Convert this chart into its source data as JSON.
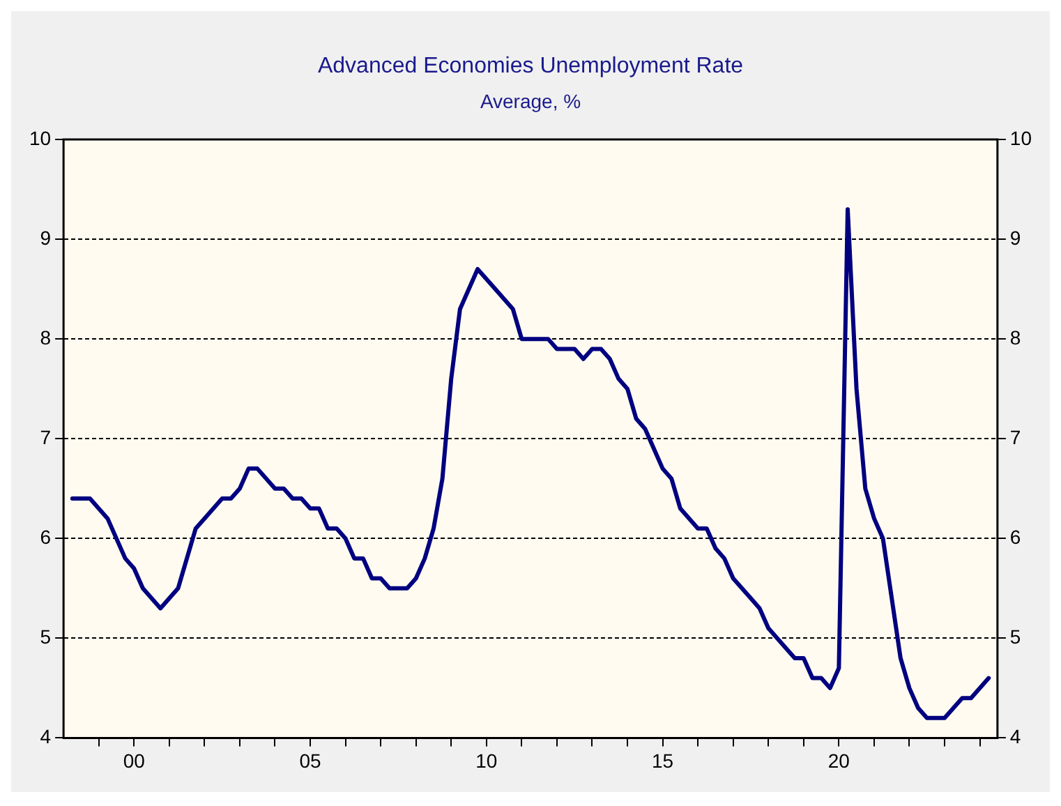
{
  "chart_data": {
    "type": "line",
    "title": "Advanced Economies Unemployment Rate",
    "subtitle": "Average, %",
    "x": [
      1998.25,
      1998.75,
      1999.25,
      1999.75,
      2000.0,
      2000.25,
      2000.75,
      2001.25,
      2001.75,
      2002.0,
      2002.5,
      2002.75,
      2003.0,
      2003.25,
      2003.5,
      2004.0,
      2004.25,
      2004.5,
      2004.75,
      2005.0,
      2005.25,
      2005.5,
      2005.75,
      2006.0,
      2006.25,
      2006.5,
      2006.75,
      2007.0,
      2007.25,
      2007.75,
      2008.0,
      2008.25,
      2008.5,
      2008.75,
      2009.0,
      2009.25,
      2009.75,
      2010.25,
      2010.75,
      2011.0,
      2011.75,
      2012.0,
      2012.5,
      2012.75,
      2013.0,
      2013.25,
      2013.5,
      2013.75,
      2014.0,
      2014.25,
      2014.5,
      2014.75,
      2015.0,
      2015.25,
      2015.5,
      2016.0,
      2016.25,
      2016.5,
      2016.75,
      2017.0,
      2017.5,
      2017.75,
      2018.0,
      2018.5,
      2018.75,
      2019.0,
      2019.25,
      2019.5,
      2019.75,
      2020.0,
      2020.25,
      2020.5,
      2020.75,
      2021.0,
      2021.25,
      2021.75,
      2022.0,
      2022.25,
      2022.5,
      2023.0,
      2023.5,
      2023.75,
      2024.25
    ],
    "series": [
      {
        "color": "#000080",
        "values": [
          6.4,
          6.4,
          6.2,
          5.8,
          5.7,
          5.5,
          5.3,
          5.5,
          6.1,
          6.2,
          6.4,
          6.4,
          6.5,
          6.7,
          6.7,
          6.5,
          6.5,
          6.4,
          6.4,
          6.3,
          6.3,
          6.1,
          6.1,
          6.0,
          5.8,
          5.8,
          5.6,
          5.6,
          5.5,
          5.5,
          5.6,
          5.8,
          6.1,
          6.6,
          7.6,
          8.3,
          8.7,
          8.5,
          8.3,
          8.0,
          8.0,
          7.9,
          7.9,
          7.8,
          7.9,
          7.9,
          7.8,
          7.6,
          7.5,
          7.2,
          7.1,
          6.9,
          6.7,
          6.6,
          6.3,
          6.1,
          6.1,
          5.9,
          5.8,
          5.6,
          5.4,
          5.3,
          5.1,
          4.9,
          4.8,
          4.8,
          4.6,
          4.6,
          4.5,
          4.7,
          9.3,
          7.5,
          6.5,
          6.2,
          6.0,
          4.8,
          4.5,
          4.3,
          4.2,
          4.2,
          4.4,
          4.4,
          4.6
        ]
      }
    ],
    "xlim": [
      1998,
      2024.5
    ],
    "xticks": [
      {
        "value": 1999,
        "label": null
      },
      {
        "value": 2000,
        "label": "00"
      },
      {
        "value": 2001,
        "label": null
      },
      {
        "value": 2002,
        "label": null
      },
      {
        "value": 2003,
        "label": null
      },
      {
        "value": 2004,
        "label": null
      },
      {
        "value": 2005,
        "label": "05"
      },
      {
        "value": 2006,
        "label": null
      },
      {
        "value": 2007,
        "label": null
      },
      {
        "value": 2008,
        "label": null
      },
      {
        "value": 2009,
        "label": null
      },
      {
        "value": 2010,
        "label": "10"
      },
      {
        "value": 2011,
        "label": null
      },
      {
        "value": 2012,
        "label": null
      },
      {
        "value": 2013,
        "label": null
      },
      {
        "value": 2014,
        "label": null
      },
      {
        "value": 2015,
        "label": "15"
      },
      {
        "value": 2016,
        "label": null
      },
      {
        "value": 2017,
        "label": null
      },
      {
        "value": 2018,
        "label": null
      },
      {
        "value": 2019,
        "label": null
      },
      {
        "value": 2020,
        "label": "20"
      },
      {
        "value": 2021,
        "label": null
      },
      {
        "value": 2022,
        "label": null
      },
      {
        "value": 2023,
        "label": null
      },
      {
        "value": 2024,
        "label": null
      }
    ],
    "ylim": [
      4,
      10
    ],
    "yticks": [
      4,
      5,
      6,
      7,
      8,
      9,
      10
    ],
    "y2lim": [
      4,
      10
    ],
    "y2ticks": [
      4,
      5,
      6,
      7,
      8,
      9,
      10
    ],
    "grid": "y",
    "legend": false,
    "marker": "none",
    "line_style": "solid"
  }
}
